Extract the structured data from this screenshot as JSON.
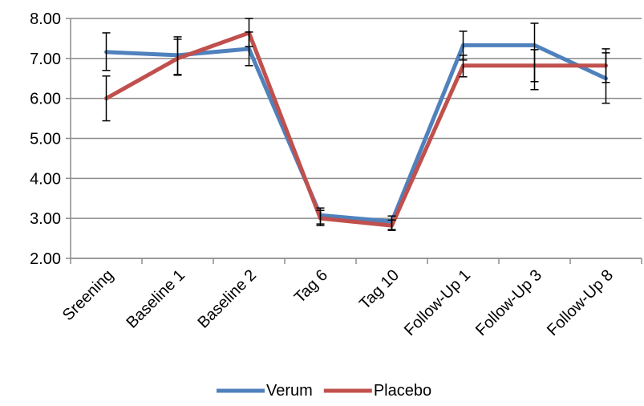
{
  "chart_data": {
    "type": "line",
    "categories": [
      "Sreening",
      "Baseline 1",
      "Baseline 2",
      "Tag 6",
      "Tag 10",
      "Follow-Up 1",
      "Follow-Up 3",
      "Follow-Up 8"
    ],
    "ylim": [
      2.0,
      8.0
    ],
    "yticks": [
      "2.00",
      "3.00",
      "4.00",
      "5.00",
      "6.00",
      "7.00",
      "8.00"
    ],
    "grid": true,
    "legend_position": "bottom",
    "series": [
      {
        "name": "Verum",
        "color": "#4f81bd",
        "values": [
          7.16,
          7.08,
          7.24,
          3.08,
          2.92,
          7.33,
          7.33,
          6.5
        ],
        "error_low": [
          6.7,
          6.6,
          6.82,
          2.86,
          2.72,
          6.96,
          6.42,
          5.88
        ],
        "error_high": [
          7.64,
          7.54,
          7.66,
          3.26,
          3.06,
          7.68,
          7.88,
          7.14
        ]
      },
      {
        "name": "Placebo",
        "color": "#c0504d",
        "values": [
          6.0,
          7.0,
          7.64,
          3.0,
          2.82,
          6.82,
          6.82,
          6.82
        ],
        "error_low": [
          5.44,
          6.58,
          7.3,
          2.82,
          2.7,
          6.54,
          6.22,
          6.4
        ],
        "error_high": [
          6.56,
          7.48,
          8.0,
          3.2,
          2.96,
          7.08,
          7.22,
          7.24
        ]
      }
    ]
  }
}
